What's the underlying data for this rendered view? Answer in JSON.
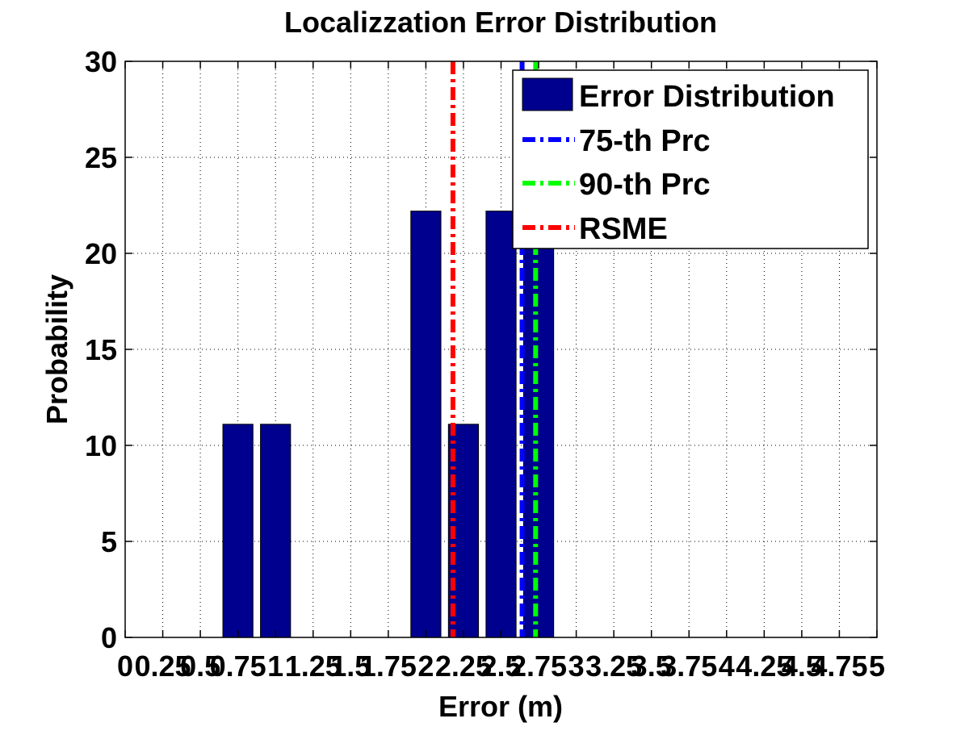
{
  "chart_data": {
    "type": "bar",
    "title": "Localizzation Error Distribution",
    "xlabel": "Error (m)",
    "ylabel": "Probability",
    "xlim": [
      0,
      5
    ],
    "ylim": [
      0,
      30
    ],
    "xticks": [
      0,
      0.25,
      0.5,
      0.75,
      1,
      1.25,
      1.5,
      1.75,
      2,
      2.25,
      2.5,
      2.75,
      3,
      3.25,
      3.5,
      3.75,
      4,
      4.25,
      4.5,
      4.75,
      5
    ],
    "xtick_labels": [
      "0",
      "0.25",
      "0.5",
      "0.75",
      "1",
      "1.25",
      "1.5",
      "1.75",
      "2",
      "2.25",
      "2.5",
      "2.75",
      "3",
      "3.25",
      "3.5",
      "3.75",
      "4",
      "4.25",
      "4.5",
      "4.75",
      "5"
    ],
    "yticks": [
      0,
      5,
      10,
      15,
      20,
      25,
      30
    ],
    "ytick_labels": [
      "0",
      "5",
      "10",
      "15",
      "20",
      "25",
      "30"
    ],
    "grid": true,
    "legend_position": "top-right",
    "bar_series": {
      "name": "Error Distribution",
      "color": "#00008f",
      "bin_width": 0.25,
      "x": [
        0.75,
        1.0,
        2.0,
        2.25,
        2.5,
        2.75
      ],
      "values": [
        11.1,
        11.1,
        22.2,
        11.1,
        22.2,
        22.2
      ]
    },
    "lines": [
      {
        "name": "75-th Prc",
        "x": 2.64,
        "color": "#0000ff"
      },
      {
        "name": "90-th Prc",
        "x": 2.73,
        "color": "#00ff00"
      },
      {
        "name": "RSME",
        "x": 2.18,
        "color": "#ff0000"
      }
    ]
  }
}
